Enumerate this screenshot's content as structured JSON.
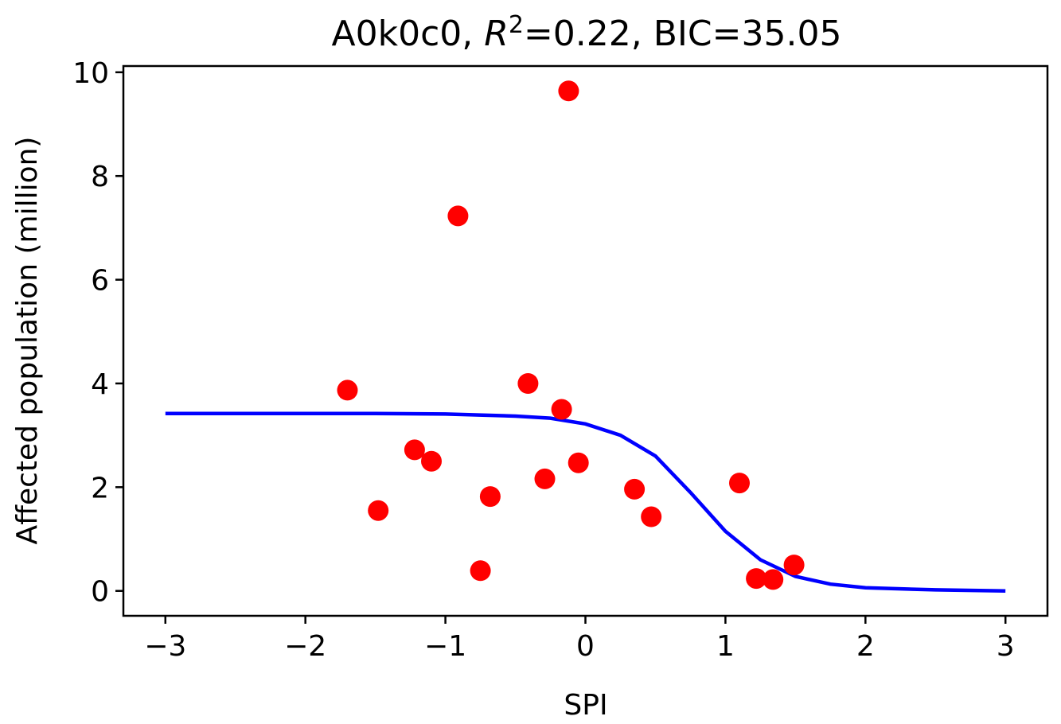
{
  "chart_data": {
    "type": "scatter",
    "title_prefix": "A0k0c0, ",
    "title_r": "R",
    "title_r_exp": "2",
    "title_suffix": "=0.22, BIC=35.05",
    "xlabel": "SPI",
    "ylabel": "Affected population (million)",
    "xlim": [
      -3.3,
      3.3
    ],
    "ylim": [
      -0.48,
      10.12
    ],
    "xticks": [
      -3,
      -2,
      -1,
      0,
      1,
      2,
      3
    ],
    "xtick_labels": [
      "−3",
      "−2",
      "−1",
      "0",
      "1",
      "2",
      "3"
    ],
    "yticks": [
      0,
      2,
      4,
      6,
      8,
      10
    ],
    "ytick_labels": [
      "0",
      "2",
      "4",
      "6",
      "8",
      "10"
    ],
    "grid": false,
    "series": [
      {
        "kind": "points",
        "color": "#ff0000",
        "points": [
          [
            -1.7,
            3.87
          ],
          [
            -1.48,
            1.55
          ],
          [
            -1.22,
            2.72
          ],
          [
            -1.1,
            2.5
          ],
          [
            -0.91,
            7.23
          ],
          [
            -0.75,
            0.39
          ],
          [
            -0.68,
            1.82
          ],
          [
            -0.41,
            4.0
          ],
          [
            -0.29,
            2.16
          ],
          [
            -0.17,
            3.5
          ],
          [
            -0.12,
            9.64
          ],
          [
            -0.05,
            2.47
          ],
          [
            0.35,
            1.96
          ],
          [
            0.47,
            1.43
          ],
          [
            1.1,
            2.08
          ],
          [
            1.22,
            0.24
          ],
          [
            1.34,
            0.22
          ],
          [
            1.49,
            0.5
          ]
        ]
      },
      {
        "kind": "fitted-curve",
        "color": "#0000ff",
        "x": [
          -3.0,
          -2.5,
          -2.0,
          -1.5,
          -1.0,
          -0.5,
          -0.25,
          0.0,
          0.25,
          0.5,
          0.75,
          1.0,
          1.25,
          1.5,
          1.75,
          2.0,
          2.5,
          3.0
        ],
        "y": [
          3.42,
          3.42,
          3.42,
          3.42,
          3.41,
          3.37,
          3.33,
          3.22,
          3.0,
          2.6,
          1.9,
          1.15,
          0.6,
          0.28,
          0.13,
          0.06,
          0.02,
          0.0
        ]
      }
    ]
  }
}
